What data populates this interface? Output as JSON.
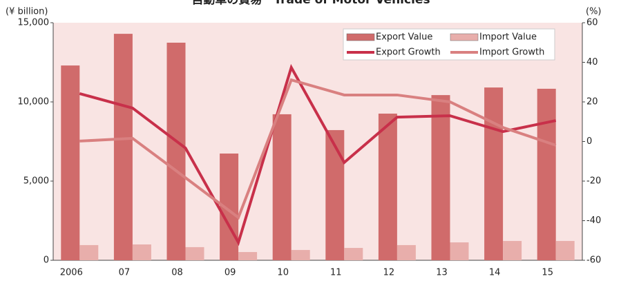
{
  "chart_data": {
    "type": "bar_line",
    "title": "自動車の貿易　Trade of Motor Vehicles",
    "y_label": "(¥ billion)",
    "y2_label": "(%)",
    "categories": [
      "2006",
      "07",
      "08",
      "09",
      "10",
      "11",
      "12",
      "13",
      "14",
      "15"
    ],
    "series": [
      {
        "name": "Export Value",
        "kind": "bar",
        "color": "#d06b6b",
        "values": [
          12300,
          14300,
          13740,
          6740,
          9220,
          8220,
          9260,
          10430,
          10910,
          10830
        ]
      },
      {
        "name": "Import Value",
        "kind": "bar",
        "color": "#e8aeab",
        "values": [
          960,
          1000,
          830,
          520,
          650,
          780,
          960,
          1130,
          1220,
          1220
        ]
      },
      {
        "name": "Export Growth",
        "kind": "line",
        "axis": "y2",
        "color": "#c8304a",
        "values": [
          24.2,
          16.9,
          -3.3,
          -51,
          37.4,
          -10.6,
          12.3,
          13,
          5,
          10.6
        ]
      },
      {
        "name": "Import Growth",
        "kind": "line",
        "axis": "y2",
        "color": "#d98080",
        "values": [
          0.2,
          1.6,
          -18.3,
          -38.4,
          31.1,
          23.5,
          23.5,
          20,
          7.1,
          -1.9
        ]
      }
    ],
    "ylim": [
      0,
      15000
    ],
    "yticks": [
      0,
      {
        "value": 5000,
        "label": "5,000"
      },
      {
        "value": 10000,
        "label": "10,000"
      },
      {
        "value": 15000,
        "label": "15,000"
      }
    ],
    "y2lim": [
      -60,
      60
    ],
    "y2ticks": [
      -60,
      -40,
      -20,
      0,
      20,
      40,
      60
    ],
    "legend": "upper right"
  }
}
